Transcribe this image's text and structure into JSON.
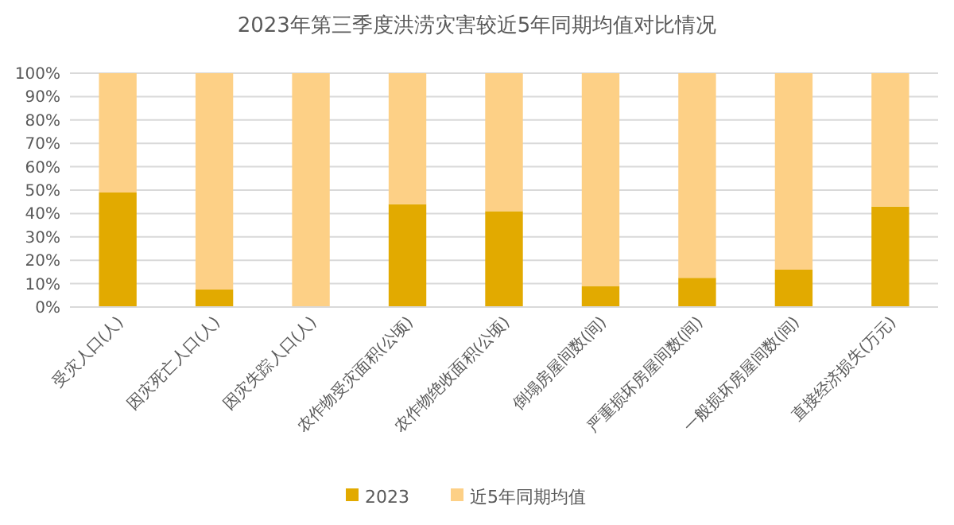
{
  "chart_data": {
    "type": "bar",
    "title": "2023年第三季度洪涝灾害较近5年同期均值对比情况",
    "stacked": true,
    "categories": [
      "受灾人口(人)",
      "因灾死亡人口(人)",
      "因灾失踪人口(人)",
      "农作物受灾面积(公顷)",
      "农作物绝收面积(公顷)",
      "倒塌房屋间数(间)",
      "严重损坏房屋间数(间)",
      "一般损坏房屋间数(间)",
      "直接经济损失(万元)"
    ],
    "series": [
      {
        "name": "2023",
        "color": "#e2aa00",
        "values": [
          49,
          7.5,
          0,
          44,
          41,
          9,
          12.5,
          16,
          43
        ]
      },
      {
        "name": "近5年同期均值",
        "color": "#fdd086",
        "values": [
          51,
          92.5,
          100,
          56,
          59,
          91,
          87.5,
          84,
          57
        ]
      }
    ],
    "ylim": [
      0,
      100
    ],
    "yticks": [
      {
        "value": 0,
        "label": "0%"
      },
      {
        "value": 10,
        "label": "10%"
      },
      {
        "value": 20,
        "label": "20%"
      },
      {
        "value": 30,
        "label": "30%"
      },
      {
        "value": 40,
        "label": "40%"
      },
      {
        "value": 50,
        "label": "50%"
      },
      {
        "value": 60,
        "label": "60%"
      },
      {
        "value": 70,
        "label": "70%"
      },
      {
        "value": 80,
        "label": "80%"
      },
      {
        "value": 90,
        "label": "90%"
      },
      {
        "value": 100,
        "label": "100%"
      }
    ],
    "grid": "y",
    "legend": "bottom"
  }
}
